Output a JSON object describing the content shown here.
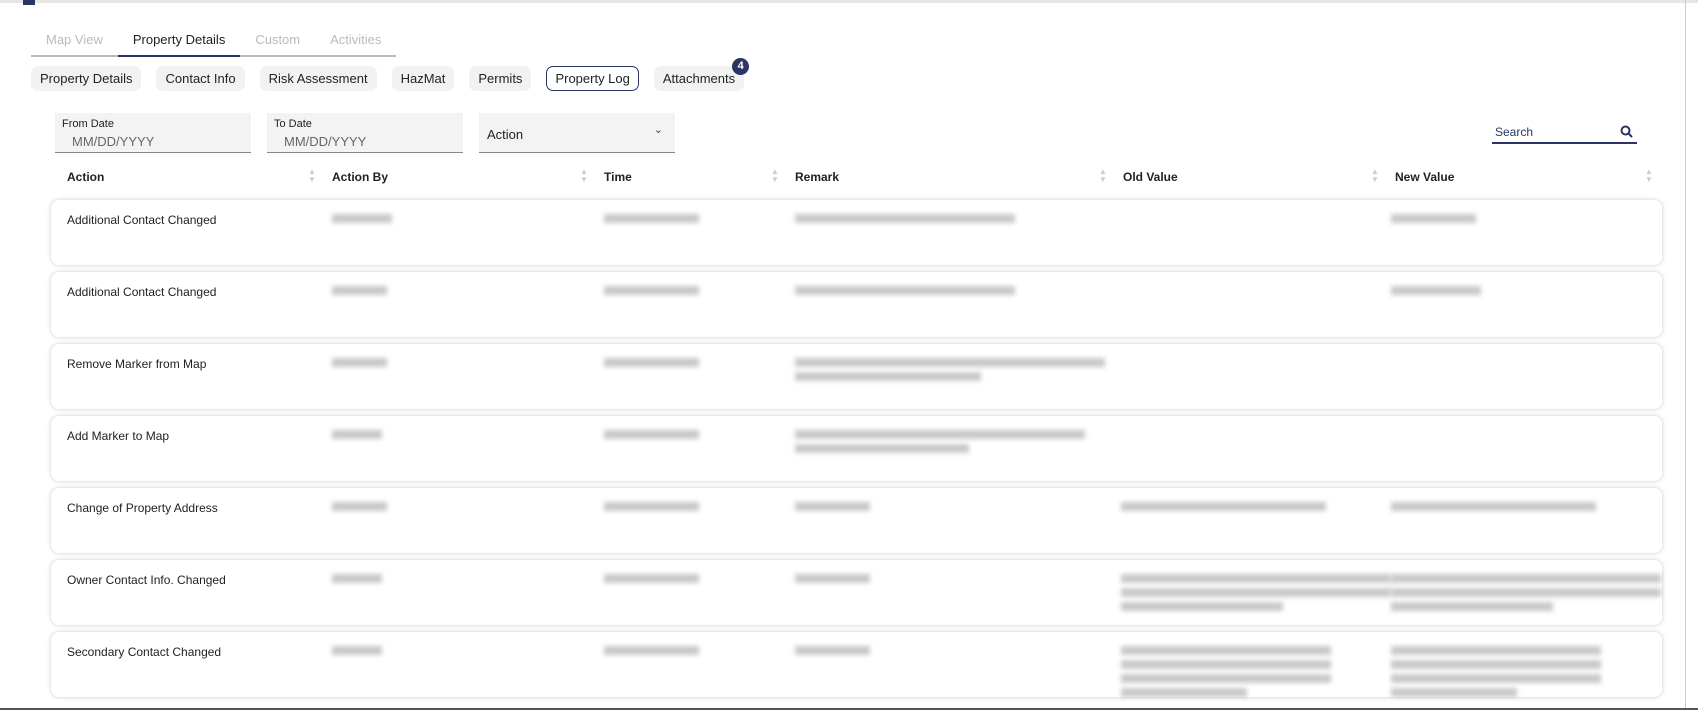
{
  "main_tabs": [
    {
      "label": "Map View",
      "active": false
    },
    {
      "label": "Property Details",
      "active": true
    },
    {
      "label": "Custom",
      "active": false
    },
    {
      "label": "Activities",
      "active": false
    }
  ],
  "sub_tabs": [
    {
      "label": "Property Details"
    },
    {
      "label": "Contact Info"
    },
    {
      "label": "Risk Assessment"
    },
    {
      "label": "HazMat"
    },
    {
      "label": "Permits"
    },
    {
      "label": "Property Log",
      "active": true
    },
    {
      "label": "Attachments",
      "badge": "4"
    }
  ],
  "filters": {
    "from_label": "From Date",
    "from_placeholder": "MM/DD/YYYY",
    "to_label": "To Date",
    "to_placeholder": "MM/DD/YYYY",
    "action_select": "Action",
    "search_placeholder": "Search"
  },
  "columns": [
    "Action",
    "Action By",
    "Time",
    "Remark",
    "Old Value",
    "New Value"
  ],
  "rows": [
    {
      "action": "Additional Contact Changed"
    },
    {
      "action": "Additional Contact Changed"
    },
    {
      "action": "Remove Marker from Map"
    },
    {
      "action": "Add Marker to Map"
    },
    {
      "action": "Change of Property Address"
    },
    {
      "action": "Owner Contact Info. Changed"
    },
    {
      "action": "Secondary Contact Changed"
    }
  ],
  "colors": {
    "accent": "#2b3565"
  }
}
